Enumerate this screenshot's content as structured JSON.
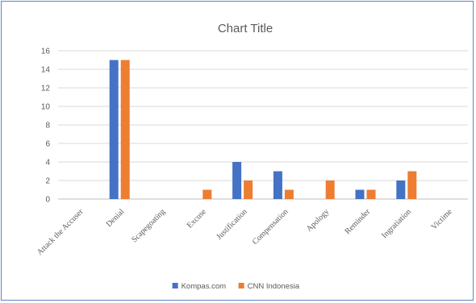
{
  "chart_data": {
    "type": "bar",
    "title": "Chart Title",
    "xlabel": "",
    "ylabel": "",
    "categories": [
      "Attack the Accuser",
      "Denial",
      "Scapegoating",
      "Excuse",
      "Justification",
      "Compensation",
      "Apology",
      "Reminder",
      "Ingratiation",
      "Victime"
    ],
    "series": [
      {
        "name": "Kompas.com",
        "color": "#4472c4",
        "values": [
          0,
          15,
          0,
          0,
          4,
          3,
          0,
          1,
          2,
          0
        ]
      },
      {
        "name": "CNN Indonesia",
        "color": "#ed7d31",
        "values": [
          0,
          15,
          0,
          1,
          2,
          1,
          2,
          1,
          3,
          0
        ]
      }
    ],
    "ylim": [
      0,
      16
    ],
    "yticks": [
      0,
      2,
      4,
      6,
      8,
      10,
      12,
      14,
      16
    ],
    "grid": true,
    "legend_position": "bottom"
  }
}
